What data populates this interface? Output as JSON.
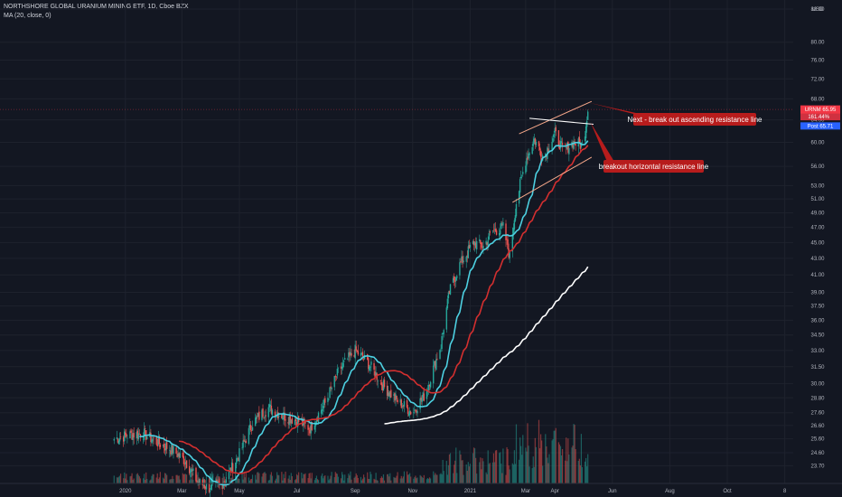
{
  "chart_data": {
    "type": "candlestick",
    "title": "NORTHSHORE GLOBAL URANIUM MINING ETF, 1D, Cboe BZX",
    "indicator": "MA (20, close, 0)",
    "currency": "USD",
    "price_axis": {
      "min": 22.7,
      "max": 88.0,
      "scale": "log",
      "ticks": [
        88.0,
        80.0,
        76.0,
        72.0,
        68.0,
        64.0,
        60.0,
        56.0,
        53.0,
        51.0,
        49.0,
        47.0,
        45.0,
        43.0,
        41.0,
        39.0,
        37.5,
        36.0,
        34.5,
        33.0,
        31.5,
        30.0,
        28.8,
        27.6,
        26.6,
        25.6,
        24.6,
        23.7
      ]
    },
    "time_axis": {
      "labels": [
        "2020",
        "Mar",
        "May",
        "Jul",
        "Sep",
        "Nov",
        "2021",
        "Mar",
        "Apr",
        "Jun",
        "Aug",
        "Oct",
        "8"
      ]
    },
    "last_price": {
      "symbol": "URNM",
      "value": "65.95",
      "change": "161.44%",
      "color": "#f23645"
    },
    "post_price": {
      "label": "Post",
      "value": "65.71",
      "color": "#2962ff"
    },
    "ohlc_anchor": [
      [
        "2019-12-20",
        25.6
      ],
      [
        "2020-01-05",
        25.9
      ],
      [
        "2020-01-20",
        26.0
      ],
      [
        "2020-02-05",
        25.3
      ],
      [
        "2020-02-20",
        24.8
      ],
      [
        "2020-03-05",
        24.0
      ],
      [
        "2020-03-18",
        22.6
      ],
      [
        "2020-04-01",
        22.2
      ],
      [
        "2020-04-15",
        22.6
      ],
      [
        "2020-05-01",
        24.5
      ],
      [
        "2020-05-15",
        26.8
      ],
      [
        "2020-06-01",
        28.0
      ],
      [
        "2020-06-15",
        27.4
      ],
      [
        "2020-07-01",
        27.0
      ],
      [
        "2020-07-15",
        26.4
      ],
      [
        "2020-08-01",
        28.5
      ],
      [
        "2020-08-15",
        31.2
      ],
      [
        "2020-09-01",
        33.0
      ],
      [
        "2020-09-15",
        31.8
      ],
      [
        "2020-10-01",
        29.8
      ],
      [
        "2020-10-15",
        28.6
      ],
      [
        "2020-11-01",
        27.6
      ],
      [
        "2020-11-15",
        29.2
      ],
      [
        "2020-12-01",
        33.5
      ],
      [
        "2020-12-10",
        39.0
      ],
      [
        "2020-12-20",
        42.0
      ],
      [
        "2021-01-05",
        45.0
      ],
      [
        "2021-01-15",
        44.5
      ],
      [
        "2021-01-25",
        46.5
      ],
      [
        "2021-02-05",
        47.0
      ],
      [
        "2021-02-12",
        43.2
      ],
      [
        "2021-02-19",
        50.5
      ],
      [
        "2021-03-01",
        57.0
      ],
      [
        "2021-03-10",
        60.5
      ],
      [
        "2021-03-20",
        57.5
      ],
      [
        "2021-04-01",
        61.5
      ],
      [
        "2021-04-10",
        58.5
      ],
      [
        "2021-04-20",
        60.0
      ],
      [
        "2021-05-01",
        59.5
      ],
      [
        "2021-05-06",
        65.95
      ]
    ],
    "annotations": [
      {
        "text": "Next - break out ascending resistance line",
        "color": "#b71c1c"
      },
      {
        "text": "breakout horizontal resistance line",
        "color": "#b71c1c"
      }
    ],
    "series_colors": {
      "up": "#26a69a",
      "down": "#ef5350",
      "ma_fast": "#4dd0e1",
      "ma_slow": "#d32f2f",
      "ma_long": "#ffffff"
    }
  }
}
